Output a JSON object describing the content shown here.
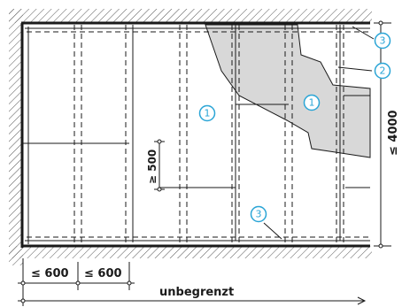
{
  "callouts": [
    {
      "label": "1"
    },
    {
      "label": "1"
    },
    {
      "label": "2"
    },
    {
      "label": "3"
    },
    {
      "label": "3"
    }
  ],
  "dimensions": {
    "max_height": "≤ 4000",
    "max_spacing": "≥ 500",
    "stud_spacing_1": "≤ 600",
    "stud_spacing_2": "≤ 600",
    "length": "unbegrenzt"
  },
  "colors": {
    "line": "#1a1a1a",
    "callout_accent": "#2aa5d6",
    "board_fill": "#d8d8d8",
    "hatch": "#555555"
  }
}
